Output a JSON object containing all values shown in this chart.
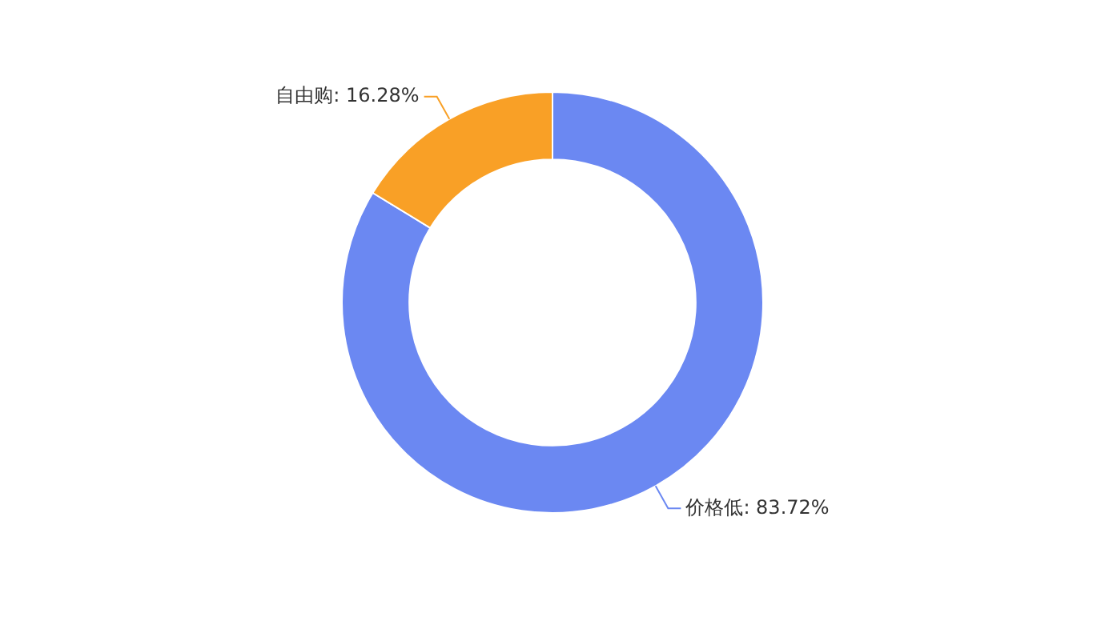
{
  "chart_data": {
    "type": "donut",
    "categories": [
      "价格低",
      "自由购"
    ],
    "values": [
      83.72,
      16.28
    ],
    "value_labels": [
      "83.72%",
      "16.28%"
    ],
    "colors": [
      "#6b88f2",
      "#f9a026"
    ],
    "legend": false
  }
}
